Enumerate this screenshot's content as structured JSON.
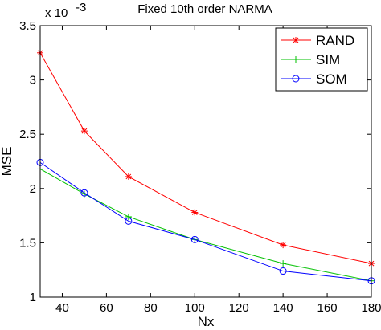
{
  "chart_data": {
    "type": "line",
    "title": "Fixed 10th order NARMA",
    "xlabel": "Nx",
    "ylabel": "MSE",
    "y_multiplier": {
      "base": "x 10",
      "exponent": "-3"
    },
    "xlim": [
      30,
      180
    ],
    "ylim": [
      1,
      3.5
    ],
    "x_ticks": [
      "40",
      "60",
      "80",
      "100",
      "120",
      "140",
      "160",
      "180"
    ],
    "y_ticks": [
      "1",
      "1.5",
      "2",
      "2.5",
      "3",
      "3.5"
    ],
    "x_tick_values": [
      40,
      60,
      80,
      100,
      120,
      140,
      160,
      180
    ],
    "y_tick_values": [
      1,
      1.5,
      2,
      2.5,
      3,
      3.5
    ],
    "x": [
      30,
      50,
      70,
      100,
      140,
      180
    ],
    "series": [
      {
        "name": "RAND",
        "color": "#ff0000",
        "marker": "asterisk",
        "values": [
          3.25,
          2.53,
          2.11,
          1.78,
          1.48,
          1.31
        ]
      },
      {
        "name": "SIM",
        "color": "#00c000",
        "marker": "plus",
        "values": [
          2.18,
          1.95,
          1.74,
          1.53,
          1.31,
          1.15
        ]
      },
      {
        "name": "SOM",
        "color": "#0000ff",
        "marker": "circle",
        "values": [
          2.24,
          1.96,
          1.7,
          1.53,
          1.24,
          1.15
        ]
      }
    ],
    "legend_position": "top-right",
    "grid": false
  }
}
